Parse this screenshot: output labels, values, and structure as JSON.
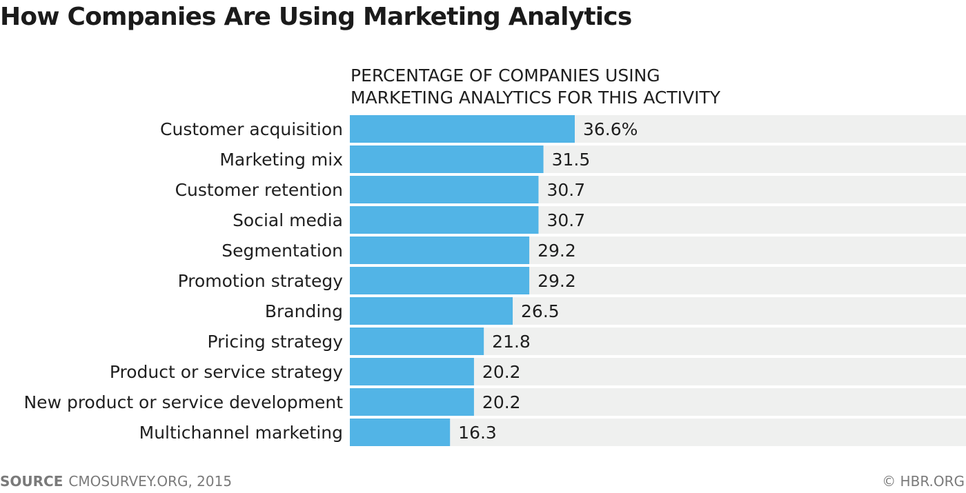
{
  "header": {
    "title": "How Companies Are Using Marketing Analytics",
    "subtitle_line1": "PERCENTAGE OF COMPANIES USING",
    "subtitle_line2": "MARKETING ANALYTICS FOR THIS ACTIVITY"
  },
  "chart_data": {
    "type": "bar",
    "orientation": "horizontal",
    "title": "How Companies Are Using Marketing Analytics",
    "subtitle": "PERCENTAGE OF COMPANIES USING MARKETING ANALYTICS FOR THIS ACTIVITY",
    "categories": [
      "Customer acquisition",
      "Marketing mix",
      "Customer retention",
      "Social media",
      "Segmentation",
      "Promotion strategy",
      "Branding",
      "Pricing strategy",
      "Product or service strategy",
      "New product or service development",
      "Multichannel marketing"
    ],
    "values": [
      36.6,
      31.5,
      30.7,
      30.7,
      29.2,
      29.2,
      26.5,
      21.8,
      20.2,
      20.2,
      16.3
    ],
    "value_labels": [
      "36.6%",
      "31.5",
      "30.7",
      "30.7",
      "29.2",
      "29.2",
      "26.5",
      "21.8",
      "20.2",
      "20.2",
      "16.3"
    ],
    "xlim": [
      0,
      100
    ],
    "grid": false,
    "legend": "none",
    "colors": {
      "bar": "#52b4e6",
      "track": "#eff0ef"
    }
  },
  "footer": {
    "source_label": "SOURCE",
    "source_text": "CMOSURVEY.ORG, 2015",
    "copyright": "© HBR.ORG"
  }
}
